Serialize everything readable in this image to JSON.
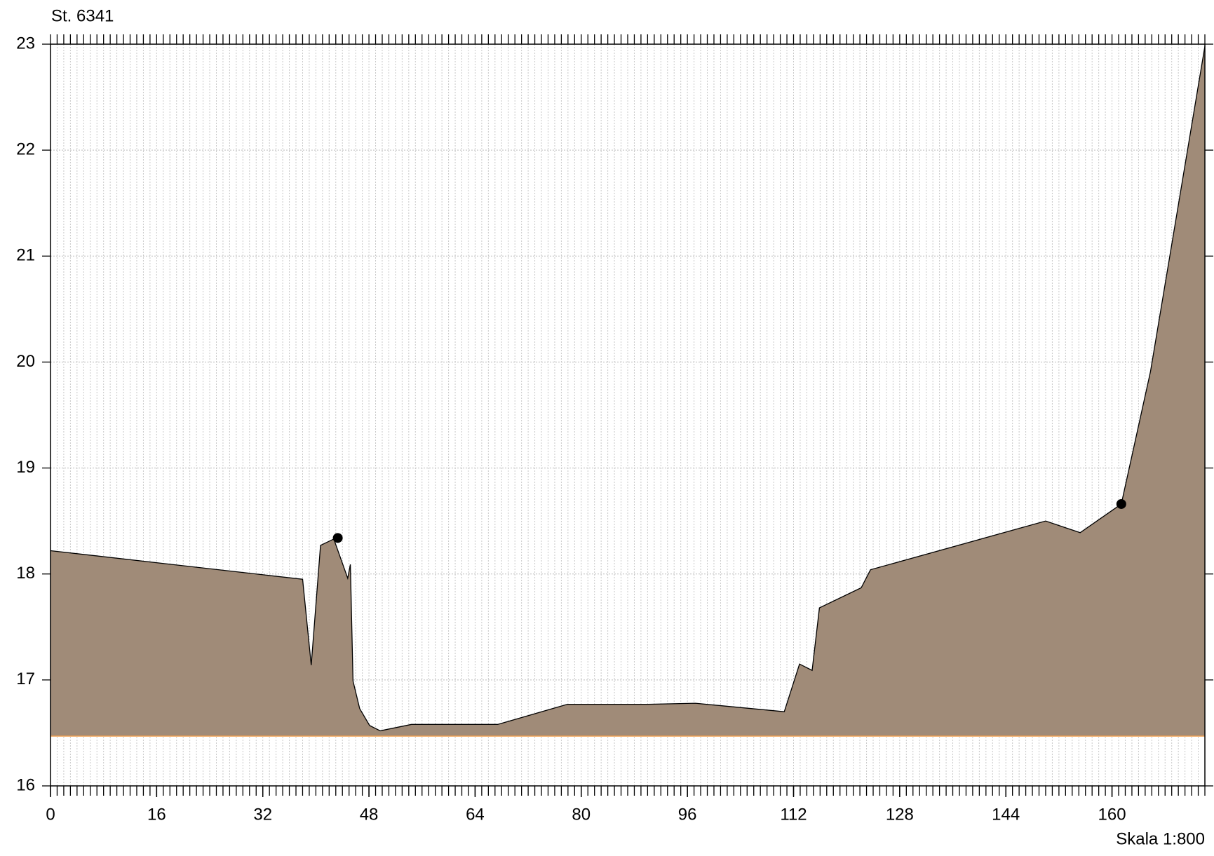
{
  "chart_data": {
    "type": "area",
    "title": "St. 6341",
    "note": "Skala 1:800",
    "x": [
      0,
      38.0,
      39.3,
      40.7,
      42.7,
      44.8,
      45.2,
      45.6,
      46.6,
      48.1,
      49.7,
      54.4,
      67.4,
      77.9,
      90.0,
      97.2,
      110.6,
      112.9,
      114.8,
      115.9,
      122.2,
      123.6,
      150.0,
      155.2,
      161.4,
      165.8,
      174
    ],
    "values": [
      18.22,
      17.95,
      17.14,
      18.27,
      18.33,
      17.96,
      18.09,
      16.99,
      16.73,
      16.57,
      16.52,
      16.58,
      16.58,
      16.77,
      16.77,
      16.78,
      16.7,
      17.15,
      17.09,
      17.68,
      17.87,
      18.04,
      18.5,
      18.39,
      18.66,
      19.91,
      22.98
    ],
    "color": "#a08b78",
    "base": 16.47,
    "base_color": "#f0a050",
    "points": {
      "x": [
        43.3,
        161.4
      ],
      "values": [
        18.34,
        18.66
      ]
    },
    "xlim": [
      0,
      174
    ],
    "ylim": [
      16,
      23
    ],
    "xticks": [
      0,
      16,
      32,
      48,
      64,
      80,
      96,
      112,
      128,
      144,
      160
    ],
    "yticks": [
      16,
      17,
      18,
      19,
      20,
      21,
      22,
      23
    ],
    "xminorticks": [
      0,
      1,
      2,
      3,
      4,
      5,
      6,
      7,
      8,
      9,
      10,
      11,
      12,
      13,
      14,
      15,
      16,
      17,
      18,
      19,
      20,
      21,
      22,
      23,
      24,
      25,
      26,
      27,
      28,
      29,
      30,
      31,
      32,
      33,
      34,
      35,
      36,
      37,
      38,
      39,
      40,
      41,
      42,
      43,
      44,
      45,
      46,
      47,
      48,
      49,
      50,
      51,
      52,
      53,
      54,
      55,
      56,
      57,
      58,
      59,
      60,
      61,
      62,
      63,
      64,
      65,
      66,
      67,
      68,
      69,
      70,
      71,
      72,
      73,
      74,
      75,
      76,
      77,
      78,
      79,
      80,
      81,
      82,
      83,
      84,
      85,
      86,
      87,
      88,
      89,
      90,
      91,
      92,
      93,
      94,
      95,
      96,
      97,
      98,
      99,
      100,
      101,
      102,
      103,
      104,
      105,
      106,
      107,
      108,
      109,
      110,
      111,
      112,
      113,
      114,
      115,
      116,
      117,
      118,
      119,
      120,
      121,
      122,
      123,
      124,
      125,
      126,
      127,
      128,
      129,
      130,
      131,
      132,
      133,
      134,
      135,
      136,
      137,
      138,
      139,
      140,
      141,
      142,
      143,
      144,
      145,
      146,
      147,
      148,
      149,
      150,
      151,
      152,
      153,
      154,
      155,
      156,
      157,
      158,
      159,
      160,
      161,
      162,
      163,
      164,
      165,
      166,
      167,
      168,
      169,
      170,
      171,
      172,
      173,
      174
    ],
    "grid": true
  }
}
